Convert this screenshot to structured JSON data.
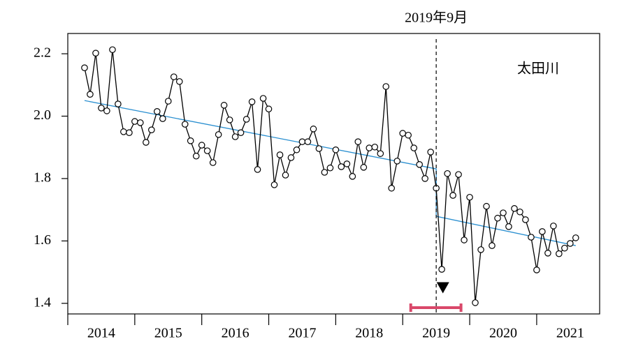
{
  "chart_data": {
    "type": "line",
    "series": [
      {
        "color": "#000000",
        "x": [
          2014.25,
          2014.333,
          2014.417,
          2014.5,
          2014.583,
          2014.667,
          2014.75,
          2014.833,
          2014.917,
          2015,
          2015.083,
          2015.167,
          2015.25,
          2015.333,
          2015.417,
          2015.5,
          2015.583,
          2015.667,
          2015.75,
          2015.833,
          2015.917,
          2016,
          2016.083,
          2016.167,
          2016.25,
          2016.333,
          2016.417,
          2016.5,
          2016.583,
          2016.667,
          2016.75,
          2016.833,
          2016.917,
          2017,
          2017.083,
          2017.167,
          2017.25,
          2017.333,
          2017.417,
          2017.5,
          2017.583,
          2017.667,
          2017.75,
          2017.833,
          2017.917,
          2018,
          2018.083,
          2018.167,
          2018.25,
          2018.333,
          2018.417,
          2018.5,
          2018.583,
          2018.667,
          2018.75,
          2018.833,
          2018.917,
          2019,
          2019.083,
          2019.167,
          2019.25,
          2019.333,
          2019.417,
          2019.5,
          2019.583,
          2019.667,
          2019.75,
          2019.833,
          2019.917,
          2020,
          2020.083,
          2020.167,
          2020.25,
          2020.333,
          2020.417,
          2020.5,
          2020.583,
          2020.667,
          2020.75,
          2020.833,
          2020.917,
          2021,
          2021.083,
          2021.167,
          2021.25,
          2021.333,
          2021.417,
          2021.5,
          2021.583
        ],
        "values": [
          2.155,
          2.07,
          2.202,
          2.026,
          2.017,
          2.213,
          2.039,
          1.95,
          1.947,
          1.983,
          1.979,
          1.916,
          1.956,
          2.015,
          1.992,
          2.048,
          2.126,
          2.111,
          1.974,
          1.921,
          1.872,
          1.907,
          1.889,
          1.851,
          1.941,
          2.035,
          1.988,
          1.934,
          1.947,
          1.99,
          2.046,
          1.829,
          2.057,
          2.023,
          1.78,
          1.876,
          1.811,
          1.867,
          1.892,
          1.918,
          1.918,
          1.959,
          1.896,
          1.82,
          1.834,
          1.892,
          1.838,
          1.847,
          1.807,
          1.918,
          1.836,
          1.898,
          1.901,
          1.88,
          2.095,
          1.769,
          1.856,
          1.945,
          1.939,
          1.898,
          1.845,
          1.8,
          1.885,
          1.769,
          1.509,
          1.816,
          1.746,
          1.813,
          1.603,
          1.74,
          1.402,
          1.572,
          1.711,
          1.585,
          1.673,
          1.69,
          1.646,
          1.704,
          1.693,
          1.668,
          1.612,
          1.507,
          1.63,
          1.561,
          1.648,
          1.559,
          1.577,
          1.592,
          1.61
        ]
      }
    ],
    "trend": {
      "color": "#2a8fd0",
      "x": [
        2014.25,
        2019.5,
        2019.5,
        2021.583
      ],
      "values": [
        2.05,
        1.831,
        1.679,
        1.585
      ]
    },
    "xlim": [
      2014,
      2021.94
    ],
    "xticks": [
      2014,
      2015,
      2016,
      2017,
      2018,
      2019,
      2020,
      2021
    ],
    "ylim": [
      1.366,
      2.265
    ],
    "yticks": [
      1.4,
      1.6,
      1.8,
      {
        "value": 2,
        "label": "2.0"
      },
      2.2
    ],
    "event_line": {
      "x": 2019.5,
      "label": "2019年9月"
    },
    "annotation": "太田川",
    "highlight_range": {
      "color": "#d9486a",
      "x": [
        2019.12,
        2019.87
      ]
    },
    "marker": {
      "x": 2019.6,
      "y": 1.45
    }
  }
}
